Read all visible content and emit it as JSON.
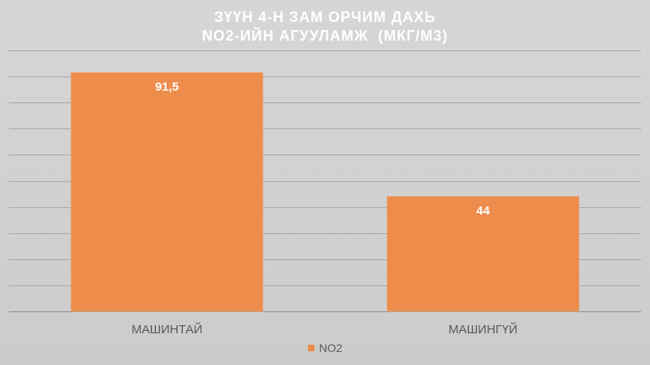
{
  "chart_data": {
    "type": "bar",
    "title_lines": [
      "ЗҮҮН 4-Н ЗАМ ОРЧИМ ДАХЬ",
      "NO2-ИЙН АГУУЛАМЖ  (МКГ/М3)"
    ],
    "categories": [
      "МАШИНТАЙ",
      "МАШИНГҮЙ"
    ],
    "series": [
      {
        "name": "NO2",
        "values": [
          91.5,
          44
        ],
        "labels": [
          "91,5",
          "44"
        ],
        "color": "#ED8C4B"
      }
    ],
    "ylim": [
      0,
      100
    ],
    "y_gridlines": [
      0,
      10,
      20,
      30,
      40,
      50,
      60,
      70,
      80,
      90,
      100
    ],
    "grid": true,
    "legend_position": "bottom",
    "colors": {
      "background": "#D6D6D6",
      "grid": "#A6A6A6",
      "bar_label": "#FFFFFF",
      "axis_text": "#595959"
    }
  }
}
